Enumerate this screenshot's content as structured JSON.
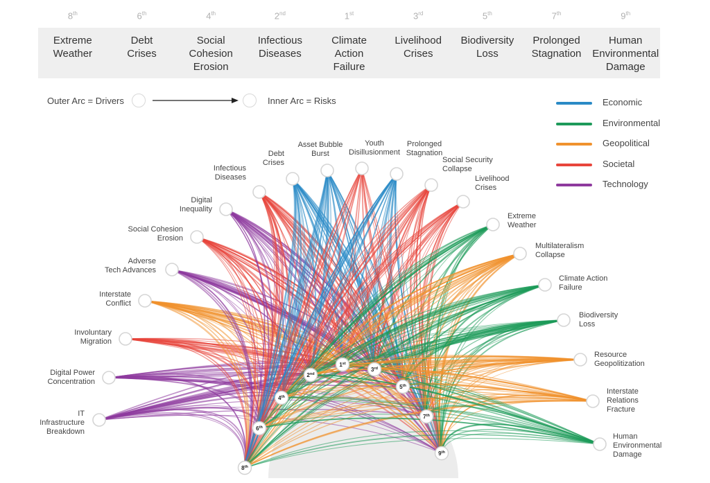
{
  "header": {
    "ranks": [
      {
        "num": "8",
        "suffix": "th"
      },
      {
        "num": "6",
        "suffix": "th"
      },
      {
        "num": "4",
        "suffix": "th"
      },
      {
        "num": "2",
        "suffix": "nd"
      },
      {
        "num": "1",
        "suffix": "st"
      },
      {
        "num": "3",
        "suffix": "rd"
      },
      {
        "num": "5",
        "suffix": "th"
      },
      {
        "num": "7",
        "suffix": "th"
      },
      {
        "num": "9",
        "suffix": "th"
      }
    ],
    "risks": [
      "Extreme\nWeather",
      "Debt\nCrises",
      "Social\nCohesion\nErosion",
      "Infectious\nDiseases",
      "Climate\nAction\nFailure",
      "Livelihood\nCrises",
      "Biodiversity\nLoss",
      "Prolonged\nStagnation",
      "Human\nEnvironmental\nDamage"
    ]
  },
  "legend_key": {
    "outer": "Outer Arc = Drivers",
    "inner": "Inner Arc = Risks"
  },
  "categories": [
    {
      "name": "Economic",
      "color": "#2a8ac6"
    },
    {
      "name": "Environmental",
      "color": "#1e9a5a"
    },
    {
      "name": "Geopolitical",
      "color": "#f0922e"
    },
    {
      "name": "Societal",
      "color": "#e8453c"
    },
    {
      "name": "Technology",
      "color": "#8e3a9e"
    }
  ],
  "drivers": [
    {
      "label": "IT\nInfrastructure\nBreakdown",
      "category": "Technology"
    },
    {
      "label": "Digital Power\nConcentration",
      "category": "Technology"
    },
    {
      "label": "Involuntary\nMigration",
      "category": "Societal"
    },
    {
      "label": "Interstate\nConflict",
      "category": "Geopolitical"
    },
    {
      "label": "Adverse\nTech Advances",
      "category": "Technology"
    },
    {
      "label": "Social Cohesion\nErosion",
      "category": "Societal"
    },
    {
      "label": "Digital\nInequality",
      "category": "Technology"
    },
    {
      "label": "Infectious\nDiseases",
      "category": "Societal"
    },
    {
      "label": "Debt\nCrises",
      "category": "Economic"
    },
    {
      "label": "Asset Bubble\nBurst",
      "category": "Economic"
    },
    {
      "label": "Youth\nDisillusionment",
      "category": "Societal"
    },
    {
      "label": "Prolonged\nStagnation",
      "category": "Economic"
    },
    {
      "label": "Social Security\nCollapse",
      "category": "Societal"
    },
    {
      "label": "Livelihood\nCrises",
      "category": "Societal"
    },
    {
      "label": "Extreme\nWeather",
      "category": "Environmental"
    },
    {
      "label": "Multilateralism\nCollapse",
      "category": "Geopolitical"
    },
    {
      "label": "Climate Action\nFailure",
      "category": "Environmental"
    },
    {
      "label": "Biodiversity\nLoss",
      "category": "Environmental"
    },
    {
      "label": "Resource\nGeopolitization",
      "category": "Geopolitical"
    },
    {
      "label": "Interstate\nRelations\nFracture",
      "category": "Geopolitical"
    },
    {
      "label": "Human\nEnvironmental\nDamage",
      "category": "Environmental"
    }
  ],
  "inner_nodes": [
    {
      "num": "8",
      "suffix": "th"
    },
    {
      "num": "6",
      "suffix": "th"
    },
    {
      "num": "4",
      "suffix": "th"
    },
    {
      "num": "2",
      "suffix": "nd"
    },
    {
      "num": "1",
      "suffix": "st"
    },
    {
      "num": "3",
      "suffix": "rd"
    },
    {
      "num": "5",
      "suffix": "th"
    },
    {
      "num": "7",
      "suffix": "th"
    },
    {
      "num": "9",
      "suffix": "th"
    }
  ]
}
